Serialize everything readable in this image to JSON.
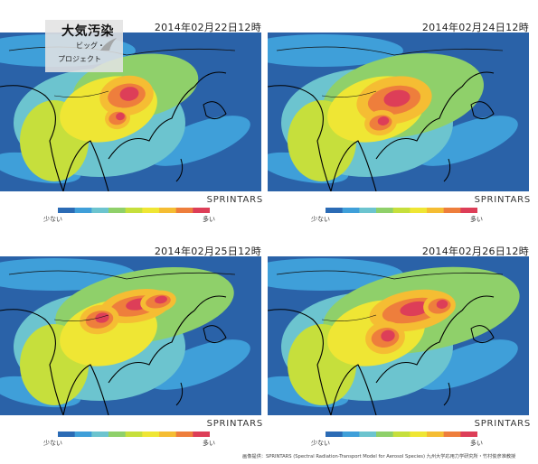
{
  "badge": {
    "title": "大気汚染",
    "subtitle_line1": "ビッグ・",
    "subtitle_line2": "プロジェクト"
  },
  "panels": [
    {
      "timestamp": "2014年02月22日12時",
      "brand": "SPRINTARS",
      "scale_low": "少ない",
      "scale_high": "多い"
    },
    {
      "timestamp": "2014年02月24日12時",
      "brand": "SPRINTARS",
      "scale_low": "少ない",
      "scale_high": "多い"
    },
    {
      "timestamp": "2014年02月25日12時",
      "brand": "SPRINTARS",
      "scale_low": "少ない",
      "scale_high": "多い"
    },
    {
      "timestamp": "2014年02月26日12時",
      "brand": "SPRINTARS",
      "scale_low": "少ない",
      "scale_high": "多い"
    }
  ],
  "colorbar": [
    "#2b6bb5",
    "#3f9fd9",
    "#6cc4cf",
    "#8fd06a",
    "#c6df3c",
    "#efe634",
    "#f5bd33",
    "#ee7e3c",
    "#dd3e58"
  ],
  "credit": "画像提供：SPRINTARS (Spectral Radiation-Transport Model for Aerosol Species) 九州大学応用力学研究所・竹村俊彦准教授"
}
